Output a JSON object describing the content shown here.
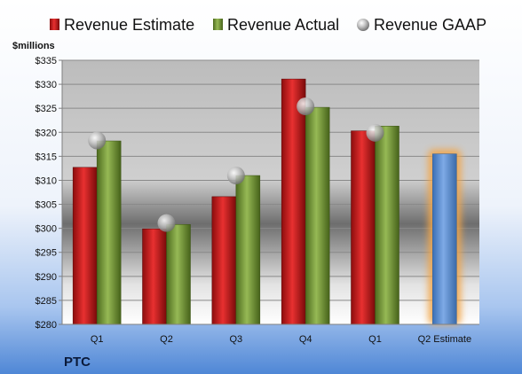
{
  "colors": {
    "estimate": "#d42020",
    "actual": "#7fa23a",
    "gaap": "#a6a6a6",
    "highlight": "#5f93d6",
    "glow": "#f2a64a"
  },
  "company": "PTC",
  "chart_data": {
    "type": "bar",
    "ylabel": "$millions",
    "ylim": [
      280,
      335
    ],
    "ytick_step": 5,
    "ytick_labels": [
      "$280",
      "$285",
      "$290",
      "$295",
      "$300",
      "$305",
      "$310",
      "$315",
      "$320",
      "$325",
      "$330",
      "$335"
    ],
    "categories": [
      "Q1",
      "Q2",
      "Q3",
      "Q4",
      "Q1",
      "Q2 Estimate"
    ],
    "grid": "horizontal",
    "legend_position": "top",
    "series": [
      {
        "name": "Revenue Estimate",
        "marker": "bar",
        "values": [
          312.7,
          299.9,
          306.6,
          331.1,
          320.3,
          null
        ]
      },
      {
        "name": "Revenue Actual",
        "marker": "bar",
        "values": [
          318.2,
          300.8,
          311.0,
          325.2,
          321.3,
          null
        ]
      },
      {
        "name": "Revenue GAAP",
        "marker": "sphere",
        "values": [
          318.3,
          301.1,
          311.0,
          325.4,
          319.9,
          null
        ]
      }
    ],
    "estimate_bar": {
      "category": "Q2 Estimate",
      "value": 315.5
    }
  }
}
